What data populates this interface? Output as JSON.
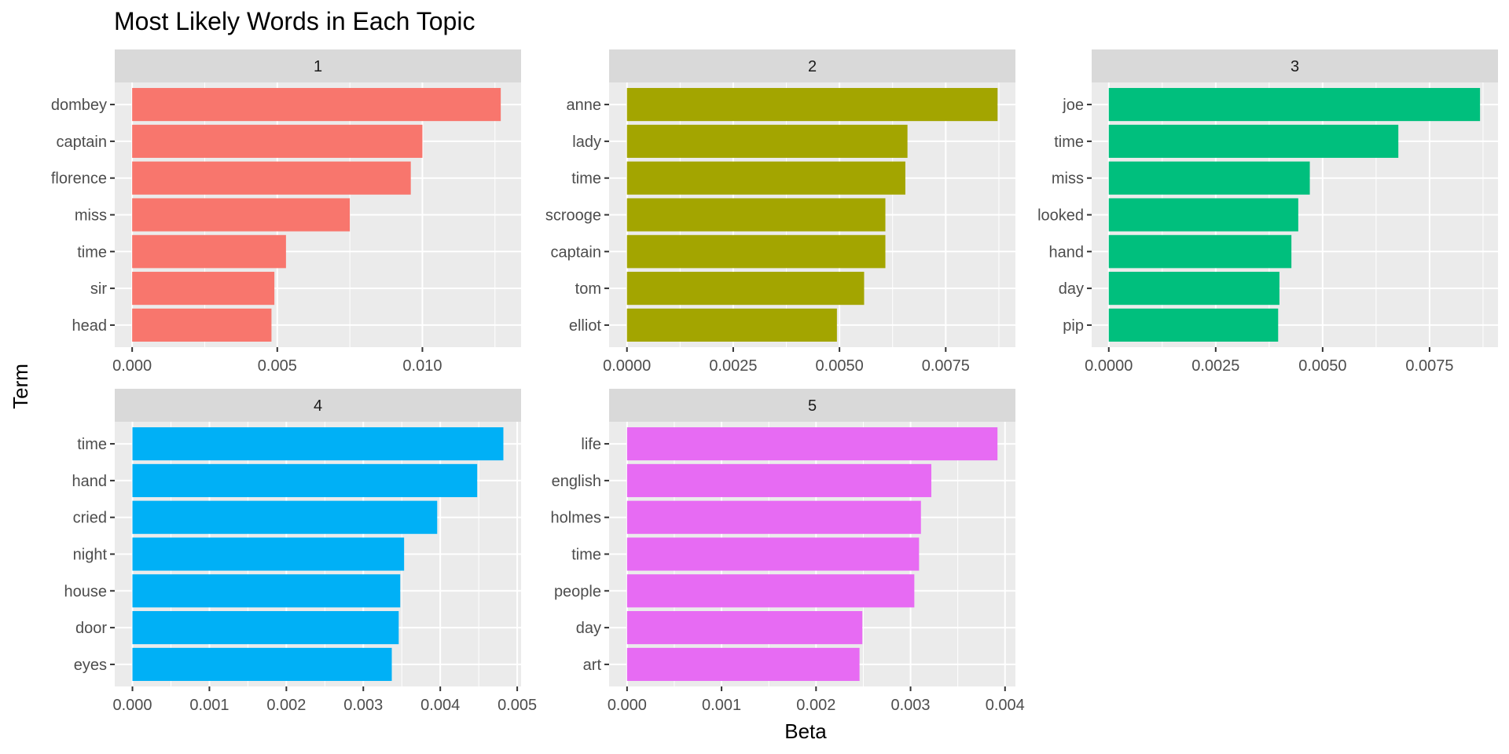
{
  "chart_data": {
    "type": "bar",
    "orientation": "horizontal",
    "title": "Most Likely Words in Each Topic",
    "xlabel": "Beta",
    "ylabel": "Term",
    "grid": true,
    "legend": "none",
    "panels": [
      {
        "name": "1",
        "color": "#F8766D",
        "terms": [
          "dombey",
          "captain",
          "florence",
          "miss",
          "time",
          "sir",
          "head"
        ],
        "values": [
          0.0127,
          0.01,
          0.0096,
          0.0075,
          0.0053,
          0.0049,
          0.0048
        ],
        "xlim": [
          -0.0006,
          0.0134
        ],
        "ticks": [
          0.0,
          0.005,
          0.01
        ],
        "tick_labels": [
          "0.000",
          "0.005",
          "0.010"
        ]
      },
      {
        "name": "2",
        "color": "#A3A500",
        "terms": [
          "anne",
          "lady",
          "time",
          "scrooge",
          "captain",
          "tom",
          "elliot"
        ],
        "values": [
          0.00872,
          0.0066,
          0.00655,
          0.00608,
          0.00608,
          0.00558,
          0.00494
        ],
        "xlim": [
          -0.00042,
          0.00914
        ],
        "ticks": [
          0.0,
          0.0025,
          0.005,
          0.0075
        ],
        "tick_labels": [
          "0.0000",
          "0.0025",
          "0.0050",
          "0.0075"
        ]
      },
      {
        "name": "3",
        "color": "#00BF7D",
        "terms": [
          "joe",
          "time",
          "miss",
          "looked",
          "hand",
          "day",
          "pip"
        ],
        "values": [
          0.00868,
          0.00677,
          0.0047,
          0.00443,
          0.00427,
          0.00399,
          0.00396
        ],
        "xlim": [
          -0.0004,
          0.0091
        ],
        "ticks": [
          0.0,
          0.0025,
          0.005,
          0.0075
        ],
        "tick_labels": [
          "0.0000",
          "0.0025",
          "0.0050",
          "0.0075"
        ]
      },
      {
        "name": "4",
        "color": "#00B0F6",
        "terms": [
          "time",
          "hand",
          "cried",
          "night",
          "house",
          "door",
          "eyes"
        ],
        "values": [
          0.00482,
          0.00448,
          0.00396,
          0.00353,
          0.00348,
          0.00346,
          0.00337
        ],
        "xlim": [
          -0.00023,
          0.00505
        ],
        "ticks": [
          0.0,
          0.001,
          0.002,
          0.003,
          0.004,
          0.005
        ],
        "tick_labels": [
          "0.000",
          "0.001",
          "0.002",
          "0.003",
          "0.004",
          "0.005"
        ]
      },
      {
        "name": "5",
        "color": "#E76BF3",
        "terms": [
          "life",
          "english",
          "holmes",
          "time",
          "people",
          "day",
          "art"
        ],
        "values": [
          0.00392,
          0.00322,
          0.00311,
          0.00309,
          0.00304,
          0.00249,
          0.00246
        ],
        "xlim": [
          -0.00019,
          0.00411
        ],
        "ticks": [
          0.0,
          0.001,
          0.002,
          0.003,
          0.004
        ],
        "tick_labels": [
          "0.000",
          "0.001",
          "0.002",
          "0.003",
          "0.004"
        ]
      }
    ]
  }
}
